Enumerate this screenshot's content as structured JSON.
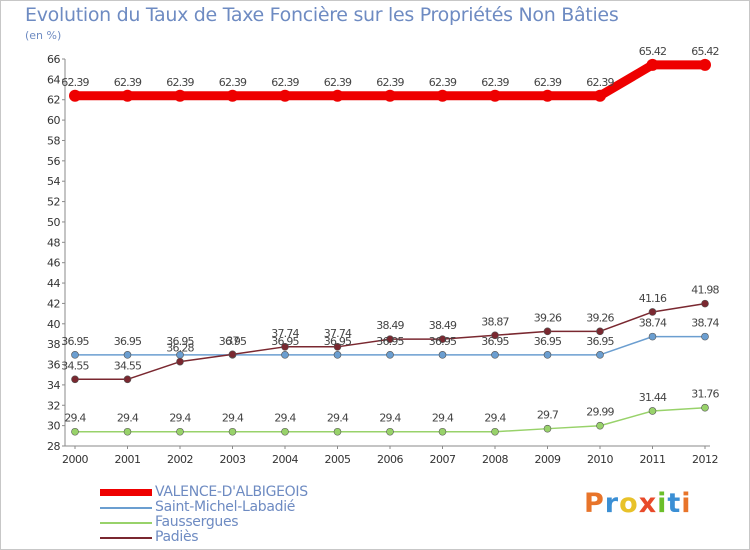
{
  "header": {
    "title": "Evolution du Taux de Taxe Foncière sur les Propriétés Non Bâties",
    "unit": "(en %)"
  },
  "brand": {
    "letters": [
      "P",
      "r",
      "o",
      "x",
      "i",
      "t",
      "i"
    ],
    "colors": [
      "#e8742a",
      "#3b8fd4",
      "#e8c22a",
      "#e84a2a",
      "#6cbf2a",
      "#3b8fd4",
      "#e8742a"
    ]
  },
  "chart_data": {
    "type": "line",
    "title": "Evolution du Taux de Taxe Foncière sur les Propriétés Non Bâties",
    "ylabel": "(en %)",
    "xlabel": "",
    "categories": [
      "2000",
      "2001",
      "2002",
      "2003",
      "2004",
      "2005",
      "2006",
      "2007",
      "2008",
      "2009",
      "2010",
      "2011",
      "2012"
    ],
    "ylim": [
      28,
      66
    ],
    "ytick_step": 2,
    "grid": false,
    "series": [
      {
        "name": "VALENCE-D'ALBIGEOIS",
        "color": "#ee0000",
        "values": [
          62.39,
          62.39,
          62.39,
          62.39,
          62.39,
          62.39,
          62.39,
          62.39,
          62.39,
          62.39,
          62.39,
          65.42,
          65.42
        ],
        "labels": [
          "62.39",
          "62.39",
          "62.39",
          "62.39",
          "62.39",
          "62.39",
          "62.39",
          "62.39",
          "62.39",
          "62.39",
          "62.39",
          "65.42",
          "65.42"
        ]
      },
      {
        "name": "Saint-Michel-Labadié",
        "color": "#6b9ed0",
        "values": [
          36.95,
          36.95,
          36.95,
          36.95,
          36.95,
          36.95,
          36.95,
          36.95,
          36.95,
          36.95,
          36.95,
          38.74,
          38.74
        ],
        "labels": [
          "36.95",
          "36.95",
          "36.95",
          "36.95",
          "36.95",
          "36.95",
          "36.95",
          "36.95",
          "36.95",
          "36.95",
          "36.95",
          "38.74",
          "38.74"
        ]
      },
      {
        "name": "Faussergues",
        "color": "#98d26a",
        "values": [
          29.4,
          29.4,
          29.4,
          29.4,
          29.4,
          29.4,
          29.4,
          29.4,
          29.4,
          29.7,
          29.99,
          31.44,
          31.76
        ],
        "labels": [
          "29.4",
          "29.4",
          "29.4",
          "29.4",
          "29.4",
          "29.4",
          "29.4",
          "29.4",
          "29.4",
          "29.7",
          "29.99",
          "31.44",
          "31.76"
        ]
      },
      {
        "name": "Padiès",
        "color": "#7a2830",
        "values": [
          34.55,
          34.55,
          36.28,
          37.0,
          37.74,
          37.74,
          38.49,
          38.49,
          38.87,
          39.26,
          39.26,
          41.16,
          41.98
        ],
        "labels": [
          "34.55",
          "34.55",
          "36.28",
          "37",
          "37.74",
          "37.74",
          "38.49",
          "38.49",
          "38.87",
          "39.26",
          "39.26",
          "41.16",
          "41.98"
        ]
      }
    ]
  }
}
